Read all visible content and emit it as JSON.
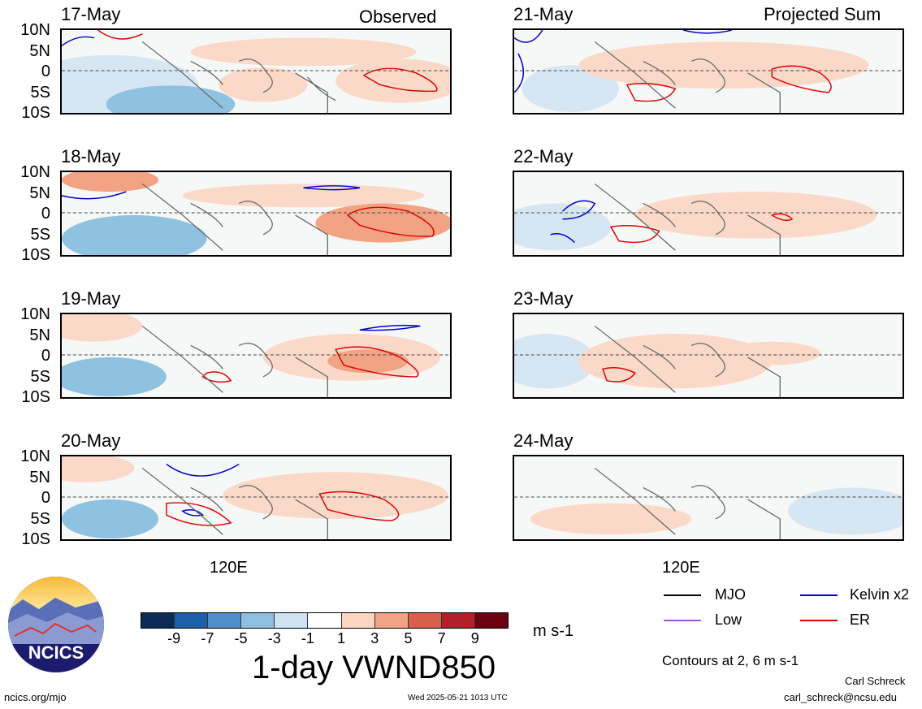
{
  "panels": {
    "left": [
      {
        "date": "17-May",
        "tag": "Observed"
      },
      {
        "date": "18-May",
        "tag": ""
      },
      {
        "date": "19-May",
        "tag": ""
      },
      {
        "date": "20-May",
        "tag": ""
      }
    ],
    "right": [
      {
        "date": "21-May",
        "tag": "Projected Sum"
      },
      {
        "date": "22-May",
        "tag": ""
      },
      {
        "date": "23-May",
        "tag": ""
      },
      {
        "date": "24-May",
        "tag": ""
      }
    ]
  },
  "lat_labels": [
    "10N",
    "5N",
    "0",
    "5S",
    "10S"
  ],
  "lon_label": "120E",
  "legend": {
    "mjo": "MJO",
    "low": "Low",
    "kelvin": "Kelvin x2",
    "er": "ER",
    "colors": {
      "mjo": "#000000",
      "low": "#a050e0",
      "kelvin": "#0000cc",
      "er": "#e00000"
    }
  },
  "colorbar": {
    "colors": [
      "#0b2a55",
      "#1d5fa8",
      "#4f8fcb",
      "#8fbfe0",
      "#cde3f1",
      "#ffffff",
      "#fbd5c0",
      "#f2a384",
      "#d9614c",
      "#b3202a",
      "#6a0010"
    ],
    "ticks": [
      "-9",
      "-7",
      "-5",
      "-3",
      "-1",
      "1",
      "3",
      "5",
      "7",
      "9"
    ],
    "units": "m s-1",
    "title": "1-day VWND850"
  },
  "contours_note": "Contours at 2, 6 m s-1",
  "logo_text": "NCICS",
  "footer": {
    "url": "ncics.org/mjo",
    "timestamp": "Wed 2025-05-21 1013 UTC",
    "author": "Carl Schreck",
    "email": "carl_schreck@ncsu.edu"
  }
}
